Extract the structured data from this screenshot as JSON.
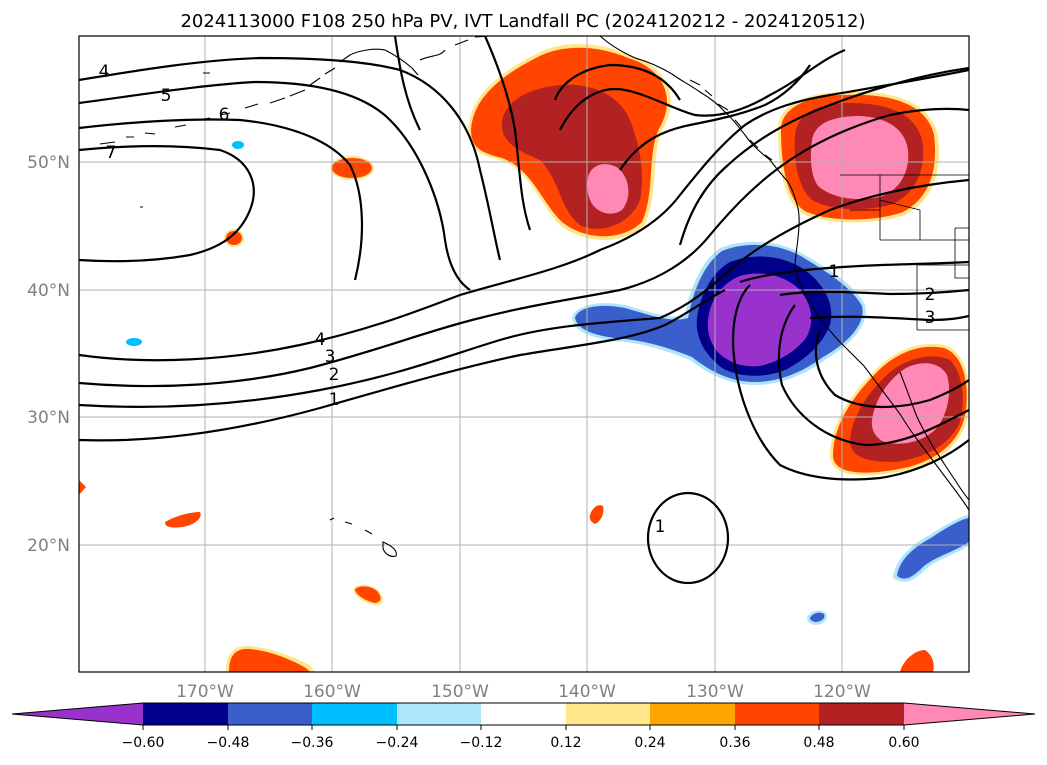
{
  "title": "2024113000 F108 250 hPa PV, IVT Landfall PC (2024120212 - 2024120512)",
  "lat_labels": [
    "50°N",
    "40°N",
    "30°N",
    "20°N"
  ],
  "lon_labels": [
    "170°W",
    "160°W",
    "150°W",
    "140°W",
    "130°W",
    "120°W"
  ],
  "contour_labels": [
    "4",
    "5",
    "6",
    "7",
    "4",
    "3",
    "2",
    "1",
    "1",
    "2",
    "3",
    "1"
  ],
  "colorbar": {
    "tick_labels": [
      "−0.60",
      "−0.48",
      "−0.36",
      "−0.24",
      "−0.12",
      "0.12",
      "0.24",
      "0.36",
      "0.48",
      "0.60"
    ],
    "colors": [
      "#9932cc",
      "#00008b",
      "#3a5fcd",
      "#00bfff",
      "#aee5fa",
      "#ffffff",
      "#ffe68a",
      "#ffa500",
      "#ff4500",
      "#b22222",
      "#ff88b4"
    ]
  },
  "colors": {
    "neg_060": "#9932cc",
    "neg_048": "#00008b",
    "neg_036": "#3a5fcd",
    "neg_024": "#00bfff",
    "neg_012": "#aee5fa",
    "pos_012": "#ffe68a",
    "pos_024": "#ffa500",
    "pos_036": "#ff4500",
    "pos_048": "#b22222",
    "pos_060": "#ff88b4",
    "grid": "#b0b0b0",
    "axis_label": "#808080"
  }
}
